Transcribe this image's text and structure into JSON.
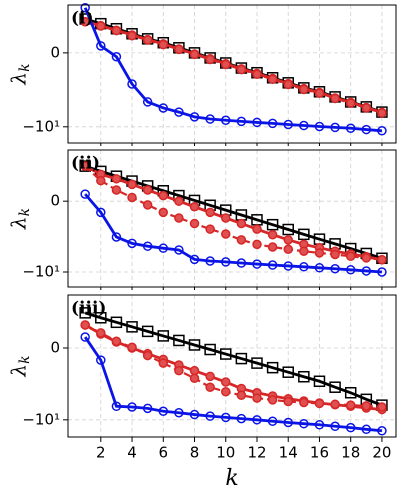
{
  "chart_data": [
    {
      "type": "line",
      "label": "(i)",
      "ylabel": "λ",
      "ylabel_subscript": "k",
      "yscale": "symlog",
      "linthresh": 1,
      "x": [
        1,
        2,
        3,
        4,
        5,
        6,
        7,
        8,
        9,
        10,
        11,
        12,
        13,
        14,
        15,
        16,
        17,
        18,
        19,
        20
      ],
      "xlim": [
        -0.1,
        20.9
      ],
      "ylim": [
        -29,
        1.8
      ],
      "xticks": [
        2,
        4,
        6,
        8,
        10,
        12,
        14,
        16,
        18,
        20
      ],
      "yticks": [
        {
          "value": -10,
          "label": "−10¹"
        },
        0
      ],
      "grid": true,
      "series": [
        {
          "color": "#000000",
          "marker": "square",
          "linestyle": "solid",
          "values": [
            0.87,
            0.75,
            0.62,
            0.49,
            0.36,
            0.26,
            0.13,
            0,
            -0.13,
            -0.26,
            -0.39,
            -0.51,
            -0.64,
            -0.77,
            -0.9,
            -1.0,
            -1.4,
            -1.95,
            -2.7,
            -3.8
          ]
        },
        {
          "color": "#d62728",
          "marker": "circle",
          "linestyle": "solid",
          "values": [
            0.8,
            0.7,
            0.58,
            0.46,
            0.34,
            0.23,
            0.1,
            -0.03,
            -0.15,
            -0.28,
            -0.41,
            -0.53,
            -0.66,
            -0.79,
            -0.92,
            -1.05,
            -1.5,
            -2.0,
            -2.8,
            -3.9
          ]
        },
        {
          "color": "#d62728",
          "marker": "circle",
          "linestyle": "dashed",
          "values": [
            0.8,
            0.69,
            0.57,
            0.44,
            0.33,
            0.21,
            0.09,
            -0.04,
            -0.17,
            -0.3,
            -0.43,
            -0.55,
            -0.68,
            -0.81,
            -0.94,
            -1.1,
            -1.55,
            -2.1,
            -2.9,
            -4.0
          ]
        },
        {
          "color": "#0a14e6",
          "marker": "circle",
          "linestyle": "solid",
          "values": [
            1.5,
            0.18,
            -0.1,
            -0.8,
            -1.95,
            -2.9,
            -3.8,
            -5.2,
            -6,
            -6.5,
            -7,
            -7.5,
            -8,
            -8.6,
            -9.2,
            -9.8,
            -10.4,
            -11,
            -12,
            -13
          ]
        }
      ]
    },
    {
      "type": "line",
      "label": "(ii)",
      "ylabel": "λ",
      "ylabel_subscript": "k",
      "yscale": "symlog",
      "linthresh": 1,
      "x": [
        1,
        2,
        3,
        4,
        5,
        6,
        7,
        8,
        9,
        10,
        11,
        12,
        13,
        14,
        15,
        16,
        17,
        18,
        19,
        20
      ],
      "xlim": [
        -0.1,
        20.9
      ],
      "ylim": [
        -28,
        2.6
      ],
      "xticks": [
        2,
        4,
        6,
        8,
        10,
        12,
        14,
        16,
        18,
        20
      ],
      "yticks": [
        {
          "value": -10,
          "label": "−10¹"
        },
        0
      ],
      "grid": true,
      "series": [
        {
          "color": "#000000",
          "marker": "square",
          "linestyle": "solid",
          "values": [
            0.94,
            0.8,
            0.67,
            0.54,
            0.41,
            0.28,
            0.15,
            0.02,
            -0.11,
            -0.24,
            -0.37,
            -0.5,
            -0.63,
            -0.76,
            -0.89,
            -1.05,
            -1.45,
            -2.0,
            -2.8,
            -3.9
          ]
        },
        {
          "color": "#d62728",
          "marker": "circle",
          "linestyle": "solid",
          "values": [
            0.94,
            0.72,
            0.6,
            0.45,
            0.3,
            0.15,
            0,
            -0.15,
            -0.3,
            -0.45,
            -0.6,
            -0.75,
            -0.9,
            -1.1,
            -1.5,
            -1.9,
            -2.4,
            -2.9,
            -3.5,
            -4.3
          ]
        },
        {
          "color": "#d62728",
          "marker": "circle",
          "linestyle": "dashed",
          "values": [
            0.94,
            0.55,
            0.3,
            0.1,
            -0.1,
            -0.3,
            -0.45,
            -0.6,
            -0.75,
            -0.88,
            -1.1,
            -1.5,
            -1.8,
            -2.1,
            -2.4,
            -2.7,
            -3.0,
            -3.4,
            -3.8,
            -4.3
          ]
        },
        {
          "color": "#0a14e6",
          "marker": "circle",
          "linestyle": "solid",
          "values": [
            0.19,
            -0.3,
            -0.96,
            -1.4,
            -1.7,
            -1.95,
            -2.2,
            -4.2,
            -4.7,
            -5,
            -5.4,
            -5.8,
            -6.2,
            -6.6,
            -7,
            -7.5,
            -8,
            -8.6,
            -9.3,
            -10
          ]
        }
      ]
    },
    {
      "type": "line",
      "label": "(iii)",
      "ylabel": "λ",
      "ylabel_subscript": "k",
      "xlabel": "k",
      "yscale": "symlog",
      "linthresh": 1,
      "x": [
        1,
        2,
        3,
        4,
        5,
        6,
        7,
        8,
        9,
        10,
        11,
        12,
        13,
        14,
        15,
        16,
        17,
        18,
        19,
        20
      ],
      "xlim": [
        -0.1,
        20.9
      ],
      "ylim": [
        -32,
        2.8
      ],
      "xticks": [
        2,
        4,
        6,
        8,
        10,
        12,
        14,
        16,
        18,
        20
      ],
      "yticks": [
        {
          "value": -10,
          "label": "−10¹"
        },
        0
      ],
      "grid": true,
      "series": [
        {
          "color": "#000000",
          "marker": "square",
          "linestyle": "solid",
          "values": [
            0.93,
            0.8,
            0.68,
            0.56,
            0.44,
            0.32,
            0.2,
            0.08,
            -0.04,
            -0.16,
            -0.28,
            -0.4,
            -0.52,
            -0.64,
            -0.76,
            -0.88,
            -1.1,
            -1.6,
            -2.5,
            -3.7
          ]
        },
        {
          "color": "#d62728",
          "marker": "circle",
          "linestyle": "solid",
          "values": [
            0.61,
            0.37,
            0.16,
            0,
            -0.15,
            -0.3,
            -0.45,
            -0.6,
            -0.75,
            -0.9,
            -1.2,
            -1.6,
            -2.0,
            -2.4,
            -2.8,
            -3.2,
            -3.6,
            -4.0,
            -4.5,
            -5
          ]
        },
        {
          "color": "#d62728",
          "marker": "circle",
          "linestyle": "dashed",
          "values": [
            0.61,
            0.4,
            0.18,
            0.02,
            -0.2,
            -0.4,
            -0.6,
            -0.8,
            -1.1,
            -1.5,
            -1.9,
            -2.3,
            -2.6,
            -2.9,
            -3.1,
            -3.3,
            -3.5,
            -3.7,
            -3.9,
            -4.2
          ]
        },
        {
          "color": "#0a14e6",
          "marker": "circle",
          "linestyle": "solid",
          "values": [
            0.29,
            -0.32,
            -4,
            -4.2,
            -4.6,
            -5.6,
            -6.2,
            -7,
            -7.8,
            -8.5,
            -9.2,
            -10,
            -11,
            -12,
            -13,
            -14,
            -15.5,
            -17,
            -19,
            -21
          ]
        }
      ]
    }
  ]
}
